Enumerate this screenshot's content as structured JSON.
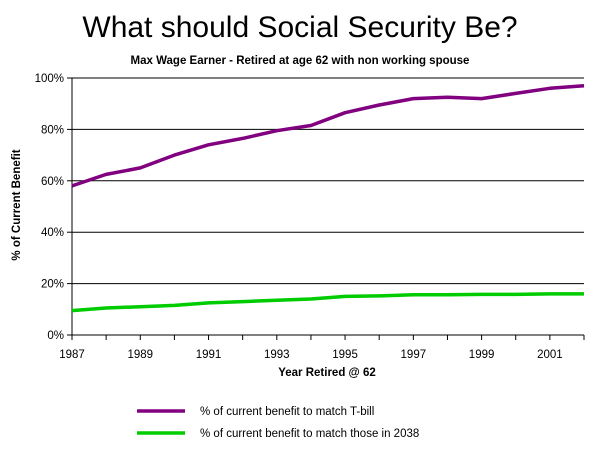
{
  "chart_data": {
    "type": "line",
    "title": "What should Social Security Be?",
    "subtitle": "Max Wage Earner - Retired at age 62 with non working spouse",
    "xlabel": "Year Retired @ 62",
    "ylabel": "% of Current Benefit",
    "xlim": [
      1987,
      2002
    ],
    "ylim": [
      0,
      100
    ],
    "x_ticks": [
      1987,
      1989,
      1991,
      1993,
      1995,
      1997,
      1999,
      2001
    ],
    "y_ticks": [
      0,
      20,
      40,
      60,
      80,
      100
    ],
    "y_tick_labels": [
      "0%",
      "20%",
      "40%",
      "60%",
      "80%",
      "100%"
    ],
    "grid": "horizontal",
    "legend_position": "bottom",
    "x": [
      1987,
      1988,
      1989,
      1990,
      1991,
      1992,
      1993,
      1994,
      1995,
      1996,
      1997,
      1998,
      1999,
      2000,
      2001,
      2002
    ],
    "series": [
      {
        "name": "% of current benefit to match T-bill",
        "color": "#800080",
        "values": [
          58,
          62.5,
          65,
          70,
          74,
          76.5,
          79.5,
          81.5,
          86.5,
          89.5,
          92,
          92.5,
          92,
          94,
          96,
          97
        ]
      },
      {
        "name": "% of current benefit to match those in 2038",
        "color": "#00cc00",
        "values": [
          9.5,
          10.5,
          11,
          11.5,
          12.5,
          13,
          13.5,
          14,
          15,
          15.2,
          15.7,
          15.7,
          15.8,
          15.8,
          16,
          16
        ]
      }
    ]
  }
}
